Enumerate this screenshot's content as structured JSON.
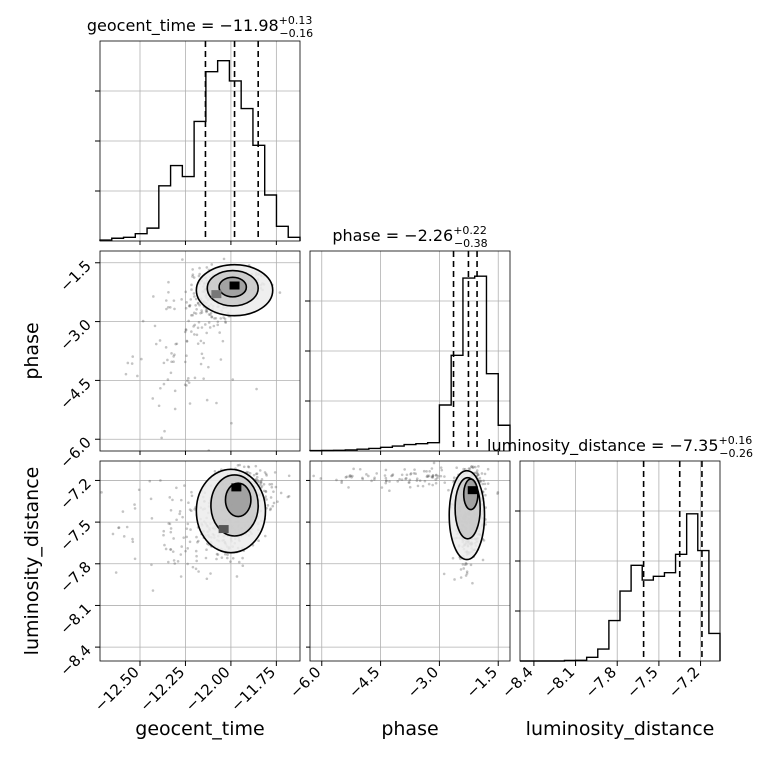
{
  "chart_data": {
    "type": "corner",
    "grid": true,
    "parameters": [
      {
        "name": "geocent_time",
        "axis_label": "geocent_time",
        "range": [
          -12.72,
          -11.62
        ],
        "ticks": [
          -12.5,
          -12.25,
          -12.0,
          -11.75
        ],
        "tick_labels": [
          "−12.50",
          "−12.25",
          "−12.00",
          "−11.75"
        ],
        "title": {
          "text": "geocent_time = −11.98",
          "sup": "+0.13",
          "sub": "−0.16"
        },
        "quantiles": [
          -12.14,
          -11.98,
          -11.85
        ],
        "hist_max": 1.0,
        "histogram": [
          0.005,
          0.015,
          0.02,
          0.04,
          0.07,
          0.3,
          0.41,
          0.35,
          0.65,
          0.92,
          0.98,
          0.87,
          0.72,
          0.52,
          0.25,
          0.08,
          0.02
        ]
      },
      {
        "name": "phase",
        "axis_label": "phase",
        "range": [
          -6.3,
          -1.2
        ],
        "ticks": [
          -6.0,
          -4.5,
          -3.0,
          -1.5
        ],
        "tick_labels": [
          "−6.0",
          "−4.5",
          "−3.0",
          "−1.5"
        ],
        "title": {
          "text": "phase = −2.26",
          "sup": "+0.22",
          "sub": "−0.38"
        },
        "quantiles": [
          -2.64,
          -2.26,
          -2.04
        ],
        "hist_max": 1.0,
        "histogram": [
          0.002,
          0.003,
          0.004,
          0.006,
          0.01,
          0.014,
          0.02,
          0.027,
          0.035,
          0.04,
          0.045,
          0.25,
          0.52,
          0.94,
          0.95,
          0.42,
          0.14
        ]
      },
      {
        "name": "luminosity_distance",
        "axis_label": "luminosity_distance",
        "range": [
          -8.5,
          -7.06
        ],
        "ticks": [
          -8.4,
          -8.1,
          -7.8,
          -7.5,
          -7.2
        ],
        "tick_labels": [
          "−8.4",
          "−8.1",
          "−7.8",
          "−7.5",
          "−7.2"
        ],
        "title": {
          "text": "luminosity_distance = −7.35",
          "sup": "+0.16",
          "sub": "−0.26"
        },
        "quantiles": [
          -7.61,
          -7.35,
          -7.19
        ],
        "hist_max": 1.0,
        "histogram": [
          0.0,
          0.0,
          0.0,
          0.0,
          0.003,
          0.004,
          0.02,
          0.065,
          0.22,
          0.38,
          0.52,
          0.44,
          0.46,
          0.48,
          0.58,
          0.8,
          0.6,
          0.15
        ]
      }
    ],
    "scatter_pairs": [
      {
        "x": "geocent_time",
        "y": "phase",
        "points": 460,
        "clusters": [
          {
            "cx": -11.98,
            "cy": -2.1,
            "sx": 0.09,
            "sy": 0.22,
            "w": 0.55
          },
          {
            "cx": -12.12,
            "cy": -2.45,
            "sx": 0.06,
            "sy": 0.45,
            "w": 0.25
          },
          {
            "cx": -12.25,
            "cy": -3.7,
            "sx": 0.14,
            "sy": 0.9,
            "w": 0.2
          }
        ],
        "contours": [
          {
            "cx": -11.99,
            "cy": -2.12,
            "rx": 0.075,
            "ry": 0.25,
            "rot": 0
          },
          {
            "cx": -11.99,
            "cy": -2.15,
            "rx": 0.14,
            "ry": 0.45,
            "rot": 0
          },
          {
            "cx": -11.98,
            "cy": -2.2,
            "rx": 0.21,
            "ry": 0.65,
            "rot": 0
          }
        ],
        "peaks": [
          {
            "x": -11.98,
            "y": -2.08,
            "shade": "#000000"
          },
          {
            "x": -12.08,
            "y": -2.3,
            "shade": "#777777"
          }
        ]
      },
      {
        "x": "geocent_time",
        "y": "luminosity_distance",
        "points": 520,
        "clusters": [
          {
            "cx": -11.92,
            "cy": -7.3,
            "sx": 0.08,
            "sy": 0.1,
            "w": 0.5
          },
          {
            "cx": -12.05,
            "cy": -7.55,
            "sx": 0.09,
            "sy": 0.13,
            "w": 0.35
          },
          {
            "cx": -12.3,
            "cy": -7.55,
            "sx": 0.18,
            "sy": 0.2,
            "w": 0.15
          }
        ],
        "contours": [
          {
            "cx": -11.96,
            "cy": -7.34,
            "rx": 0.07,
            "ry": 0.12,
            "rot": 0
          },
          {
            "cx": -11.98,
            "cy": -7.38,
            "rx": 0.13,
            "ry": 0.22,
            "rot": 0
          },
          {
            "cx": -12.0,
            "cy": -7.42,
            "rx": 0.19,
            "ry": 0.3,
            "rot": 0
          }
        ],
        "peaks": [
          {
            "x": -11.97,
            "y": -7.25,
            "shade": "#000000"
          },
          {
            "x": -12.04,
            "y": -7.55,
            "shade": "#555555"
          }
        ]
      },
      {
        "x": "phase",
        "y": "luminosity_distance",
        "points": 520,
        "clusters": [
          {
            "cx": -2.15,
            "cy": -7.35,
            "sx": 0.2,
            "sy": 0.15,
            "w": 0.55
          },
          {
            "cx": -2.3,
            "cy": -7.62,
            "sx": 0.18,
            "sy": 0.12,
            "w": 0.25
          },
          {
            "cx": -3.8,
            "cy": -7.18,
            "sx": 1.1,
            "sy": 0.04,
            "w": 0.2
          }
        ],
        "contours": [
          {
            "cx": -2.2,
            "cy": -7.3,
            "rx": 0.18,
            "ry": 0.11,
            "rot": 0
          },
          {
            "cx": -2.28,
            "cy": -7.4,
            "rx": 0.32,
            "ry": 0.22,
            "rot": 0
          },
          {
            "cx": -2.3,
            "cy": -7.45,
            "rx": 0.45,
            "ry": 0.32,
            "rot": 0
          }
        ],
        "peaks": [
          {
            "x": -2.15,
            "y": -7.27,
            "shade": "#000000"
          }
        ]
      }
    ]
  }
}
